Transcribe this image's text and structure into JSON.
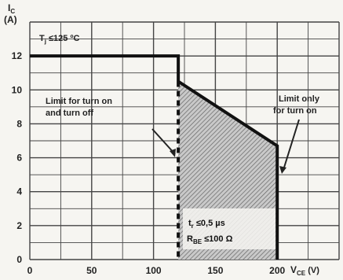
{
  "chart_data": {
    "type": "line",
    "title": "",
    "ylabel_main": "I",
    "ylabel_sub": "C",
    "ylabel_unit": "(A)",
    "xlabel_main": "V",
    "xlabel_sub": "CE",
    "xlabel_unit": " (V)",
    "xlim": [
      0,
      250
    ],
    "ylim": [
      0,
      14
    ],
    "grid": true,
    "x_ticks": [
      "0",
      "50",
      "100",
      "150",
      "200"
    ],
    "y_ticks": [
      "0",
      "2",
      "4",
      "6",
      "8",
      "10",
      "12"
    ],
    "series": [
      {
        "x": [
          0,
          120,
          120,
          120,
          200,
          200
        ],
        "y": [
          12,
          12,
          10.5,
          0,
          6.7,
          0
        ]
      }
    ],
    "annotations": {
      "tj_main": "T",
      "tj_sub": "j",
      "tj_rest": " ≤125 ºC",
      "limit_turn_on_off_1": "Limit for turn on",
      "limit_turn_on_off_2": "and turn off",
      "limit_turn_on_1": "Limit only",
      "limit_turn_on_2": "for turn on",
      "tr_main": "t",
      "tr_sub": "r",
      "tr_rest": " ≤0,5 µs",
      "rbe_main": "R",
      "rbe_sub": "BE",
      "rbe_rest": " ≤100 Ω"
    }
  }
}
